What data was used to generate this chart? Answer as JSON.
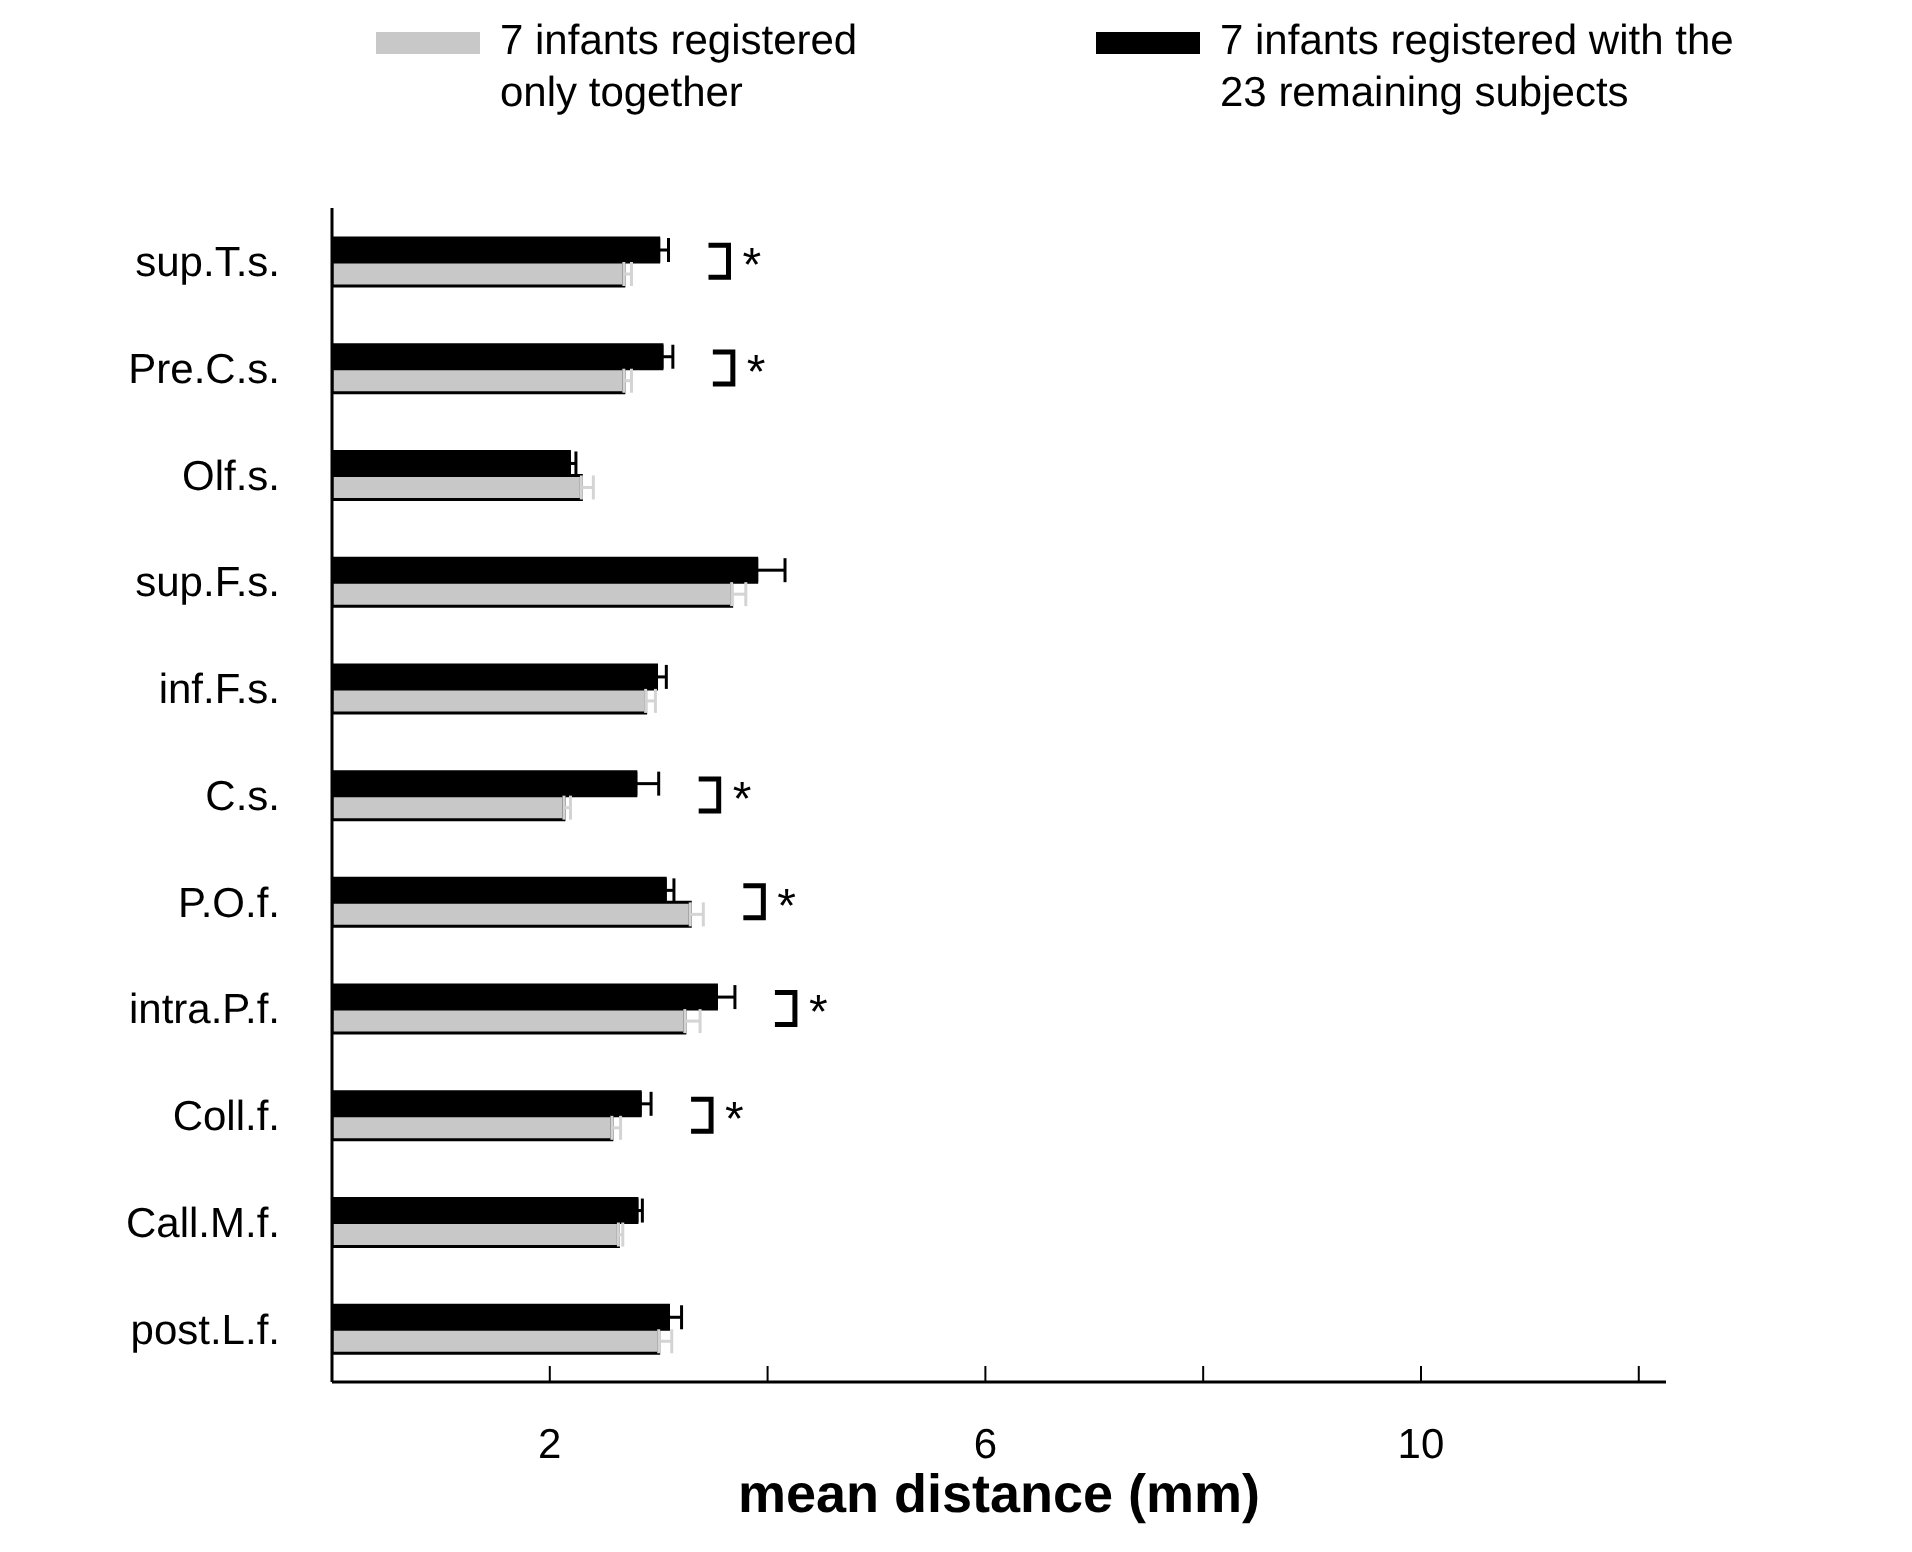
{
  "chart_data": {
    "type": "bar",
    "orientation": "horizontal",
    "xlabel": "mean distance (mm)",
    "categories": [
      "sup.T.s.",
      "Pre.C.s.",
      "Olf.s.",
      "sup.F.s.",
      "inf.F.s.",
      "C.s.",
      "P.O.f.",
      "intra.P.f.",
      "Coll.f.",
      "Call.M.f.",
      "post.L.f."
    ],
    "series": [
      {
        "name": "7 infants registered only together",
        "color": "#c8c8c8",
        "values": [
          2.68,
          2.68,
          2.29,
          3.67,
          2.88,
          2.13,
          3.29,
          3.24,
          2.57,
          2.63,
          3.0
        ],
        "errors": [
          [
            2.68,
            2.75
          ],
          [
            2.68,
            2.75
          ],
          [
            2.29,
            2.4
          ],
          [
            3.67,
            3.8
          ],
          [
            2.88,
            2.97
          ],
          [
            2.13,
            2.19
          ],
          [
            3.29,
            3.41
          ],
          [
            3.24,
            3.38
          ],
          [
            2.57,
            2.65
          ],
          [
            2.63,
            2.67
          ],
          [
            3.0,
            3.12
          ]
        ]
      },
      {
        "name": "7 infants registered with the 23 remaining subjects",
        "color": "#000000",
        "values": [
          3.0,
          3.03,
          2.18,
          3.9,
          2.98,
          2.79,
          3.06,
          3.53,
          2.83,
          2.8,
          3.09
        ],
        "errors": [
          [
            3.0,
            3.09
          ],
          [
            3.03,
            3.13
          ],
          [
            2.18,
            2.24
          ],
          [
            3.9,
            4.16
          ],
          [
            2.98,
            3.07
          ],
          [
            2.79,
            3.0
          ],
          [
            3.06,
            3.14
          ],
          [
            3.53,
            3.7
          ],
          [
            2.83,
            2.93
          ],
          [
            2.8,
            2.85
          ],
          [
            3.09,
            3.21
          ]
        ]
      }
    ],
    "xlim": [
      0,
      12.25
    ],
    "xticks": [
      2,
      {
        "value": 4,
        "label": null
      },
      6,
      {
        "value": 8,
        "label": null
      },
      10,
      {
        "value": 12,
        "label": null
      }
    ],
    "annotations": [
      {
        "text": "*",
        "x": 3.09,
        "y": "sup.T.s."
      },
      {
        "text": "*",
        "x": 3.13,
        "y": "Pre.C.s."
      },
      {
        "text": "*",
        "x": 3.0,
        "y": "C.s."
      },
      {
        "text": "*",
        "x": 3.41,
        "y": "P.O.f."
      },
      {
        "text": "*",
        "x": 3.7,
        "y": "intra.P.f."
      },
      {
        "text": "*",
        "x": 2.93,
        "y": "Coll.f."
      }
    ],
    "legend": "top",
    "grid": false
  }
}
